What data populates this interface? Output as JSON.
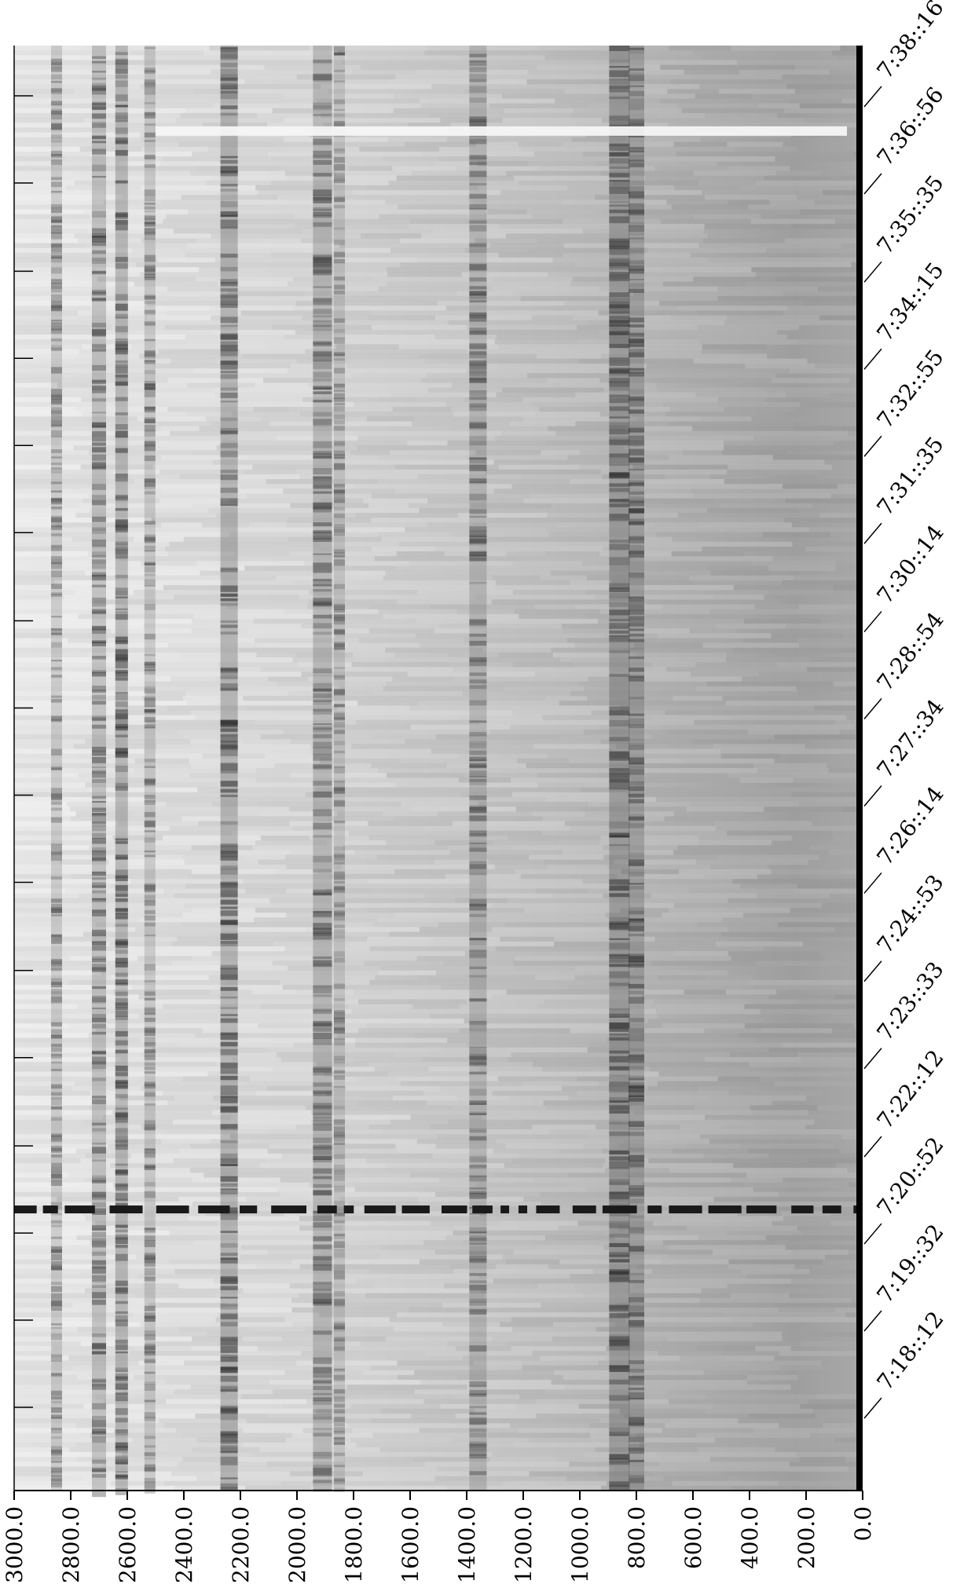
{
  "chart_data": {
    "type": "heatmap",
    "title": "",
    "colormap": "grayscale",
    "x_axis": {
      "label": "",
      "range": [
        3000.0,
        0.0
      ],
      "position": "bottom",
      "tick_labels": [
        "3000.0",
        "2800.0",
        "2600.0",
        "2400.0",
        "2200.0",
        "2000.0",
        "1800.0",
        "1600.0",
        "1400.0",
        "1200.0",
        "1000.0",
        "800.0",
        "600.0",
        "400.0",
        "200.0",
        "0.0"
      ]
    },
    "y_axis": {
      "label": "",
      "position": "right",
      "tick_labels": [
        "7:38::16",
        "7:36::56",
        "7:35::35",
        "7:34::15",
        "7:32::55",
        "7:31::35",
        "7:30::14",
        "7:28::54",
        "7:27::34",
        "7:26::14",
        "7:24::53",
        "7:23::33",
        "7:22::12",
        "7:20::52",
        "7:19::32",
        "7:18::12"
      ]
    },
    "prominent_bands": [
      2850,
      2700,
      2620,
      2520,
      2240,
      1910,
      1850,
      1360,
      860,
      800
    ],
    "event_rows": [
      {
        "time": "7:21::05",
        "shade": "dark",
        "pattern": "dashed"
      },
      {
        "time": "7:37::35",
        "shade": "light",
        "pattern": "solid"
      }
    ],
    "grid": false,
    "legend": "none"
  }
}
